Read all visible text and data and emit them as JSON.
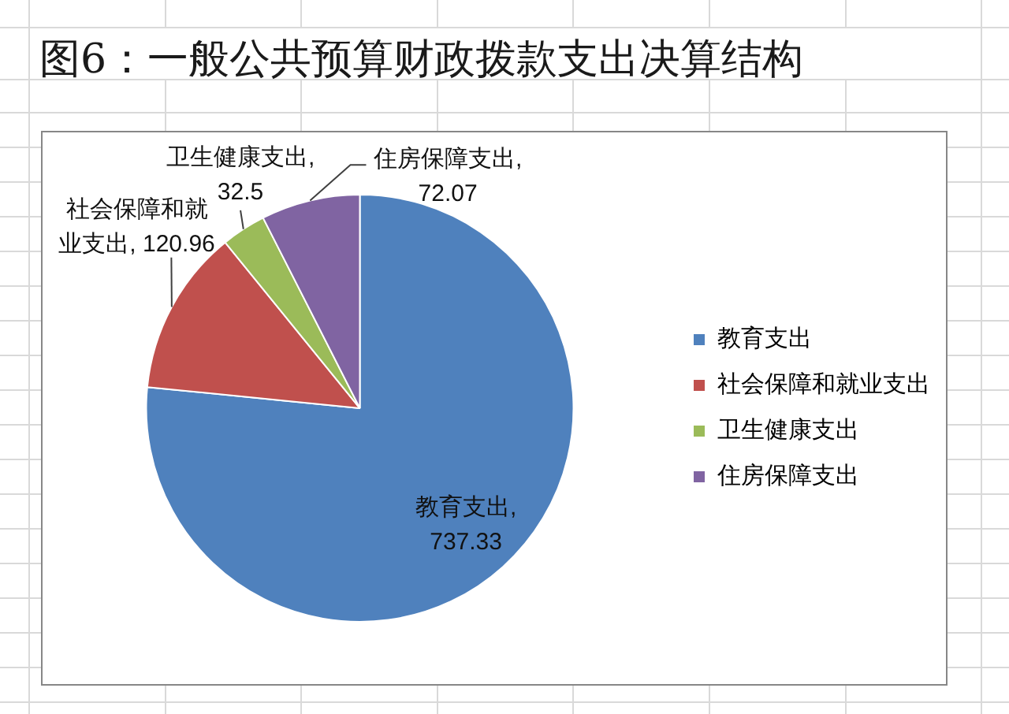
{
  "chart_data": {
    "type": "pie",
    "title": "图6：一般公共预算财政拨款支出决算结构",
    "categories": [
      "教育支出",
      "社会保障和就业支出",
      "卫生健康支出",
      "住房保障支出"
    ],
    "values": [
      737.33,
      120.96,
      32.5,
      72.07
    ],
    "value_labels": [
      "教育支出, 737.33",
      "社会保障和就业支出, 120.96",
      "卫生健康支出, 32.5",
      "住房保障支出, 72.07"
    ],
    "colors": [
      "#4f81bd",
      "#c0504d",
      "#9bbb59",
      "#8064a2"
    ],
    "legend": "right"
  }
}
